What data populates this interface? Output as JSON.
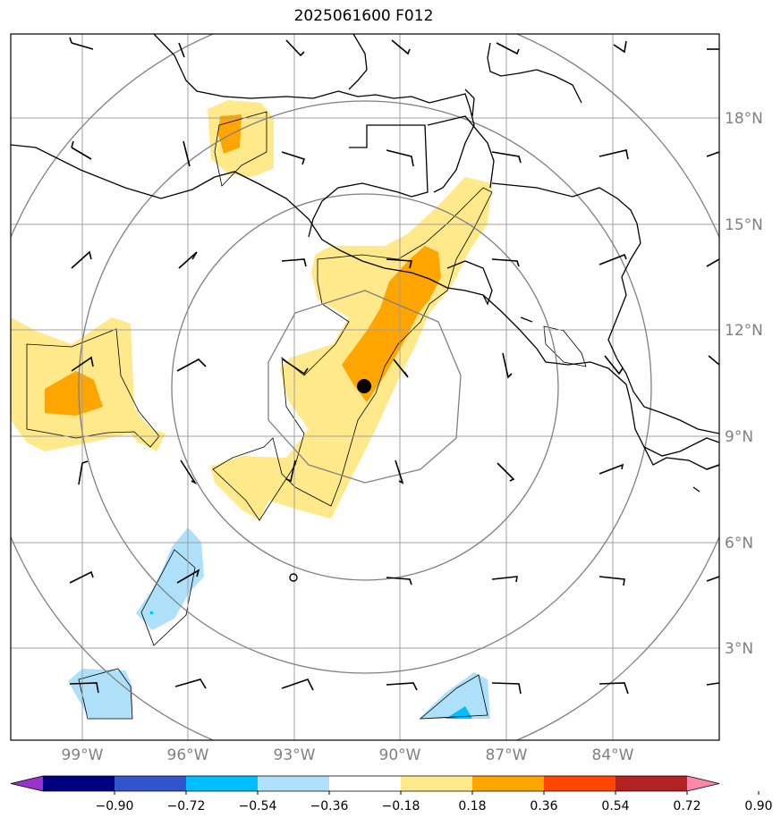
{
  "title": "2025061600 F012",
  "lat_labels": [
    "18°N",
    "15°N",
    "12°N",
    "9°N",
    "6°N",
    "3°N"
  ],
  "lon_labels": [
    "99°W",
    "96°W",
    "93°W",
    "90°W",
    "87°W",
    "84°W"
  ],
  "colorbar": {
    "ticks": [
      "−0.90",
      "−0.72",
      "−0.54",
      "−0.36",
      "−0.18",
      "0.18",
      "0.36",
      "0.54",
      "0.72",
      "0.90"
    ],
    "colors": [
      "#9933cc",
      "#000080",
      "#3355cc",
      "#00bfff",
      "#aee0fa",
      "#ffffff",
      "#ffe98a",
      "#ffa500",
      "#ff4500",
      "#b22222",
      "#ff88aa"
    ]
  },
  "colors": {
    "grid": "#a0a0a0",
    "range_ring": "#808080",
    "coast": "#000000",
    "pos_light": "#ffe98a",
    "pos_mid": "#ffa500",
    "neg_light": "#aee0fa",
    "neg_mid": "#00bfff"
  }
}
